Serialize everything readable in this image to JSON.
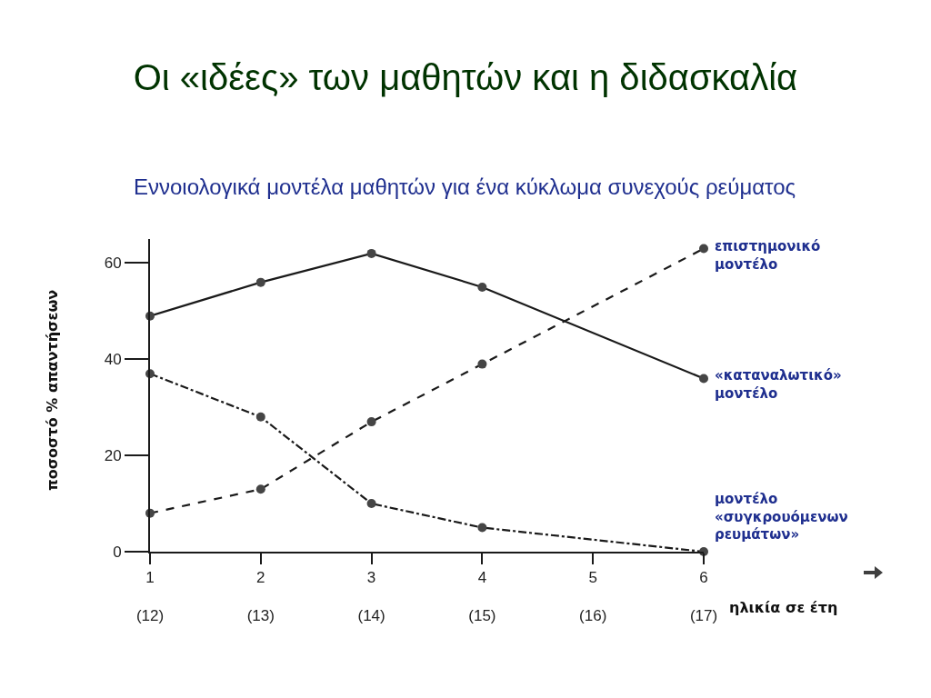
{
  "chart_data": {
    "type": "line",
    "title": "Οι «ιδέες» των μαθητών και η διδασκαλία",
    "subtitle": "Εννοιολογικά μοντέλα μαθητών για ένα κύκλωμα συνεχούς ρεύματος",
    "xlabel": "ηλικία σε έτη",
    "ylabel": "ποσοστό % απαντήσεων",
    "x": [
      1,
      2,
      3,
      4,
      6
    ],
    "series": [
      {
        "name": "επιστημονικό μοντέλο",
        "color": "#1a1a1a",
        "line_style": "dashed",
        "values": [
          8,
          13,
          27,
          39,
          63
        ]
      },
      {
        "name": "«καταναλωτικό» μοντέλο",
        "color": "#1a1a1a",
        "line_style": "solid",
        "values": [
          49,
          56,
          62,
          55,
          36
        ]
      },
      {
        "name": "μοντέλο «συγκρουόμενων ρευμάτων»",
        "color": "#1a1a1a",
        "line_style": "dashdot",
        "values": [
          37,
          28,
          10,
          5,
          0
        ]
      }
    ],
    "xlim": [
      1,
      6
    ],
    "xticks": [
      1,
      2,
      3,
      4,
      5,
      6
    ],
    "x2lim": [
      12,
      17
    ],
    "x2ticks": [
      {
        "value": 12,
        "label": "(12)"
      },
      {
        "value": 13,
        "label": "(13)"
      },
      {
        "value": 14,
        "label": "(14)"
      },
      {
        "value": 15,
        "label": "(15)"
      },
      {
        "value": 16,
        "label": "(16)"
      },
      {
        "value": 17,
        "label": "(17)"
      }
    ],
    "ylim": [
      0,
      65
    ],
    "yticks": [
      0,
      20,
      40,
      60
    ],
    "grid": false,
    "legend": false,
    "marker": "circle"
  }
}
